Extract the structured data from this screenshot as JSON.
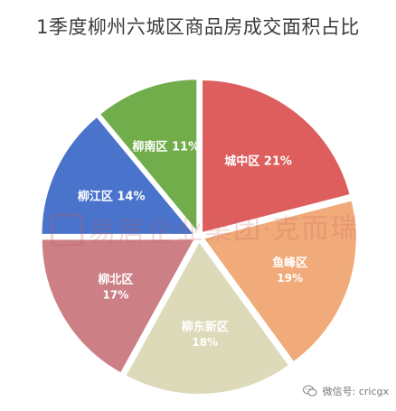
{
  "chart_data": {
    "type": "pie",
    "title": "1季度柳州六城区商品房成交面积占比",
    "slices": [
      {
        "label": "城中区",
        "value": 21,
        "display": "21%",
        "color": "#de5e5e"
      },
      {
        "label": "鱼峰区",
        "value": 19,
        "display": "19%",
        "color": "#f1aa79"
      },
      {
        "label": "柳东新区",
        "value": 18,
        "display": "18%",
        "color": "#dddab9"
      },
      {
        "label": "柳北区",
        "value": 17,
        "display": "17%",
        "color": "#cc7f85"
      },
      {
        "label": "柳江区",
        "value": 14,
        "display": "14%",
        "color": "#4a73cb"
      },
      {
        "label": "柳南区",
        "value": 11,
        "display": "11%",
        "color": "#72ad4c"
      }
    ],
    "start_angle_deg": 0,
    "direction": "clockwise",
    "label_color": "#ffffff"
  },
  "watermark": {
    "text": "易居企业集团·克而瑞",
    "logo_text": "易居"
  },
  "footer": {
    "text": "微信号: cricgx",
    "icon": "wechat-icon"
  }
}
